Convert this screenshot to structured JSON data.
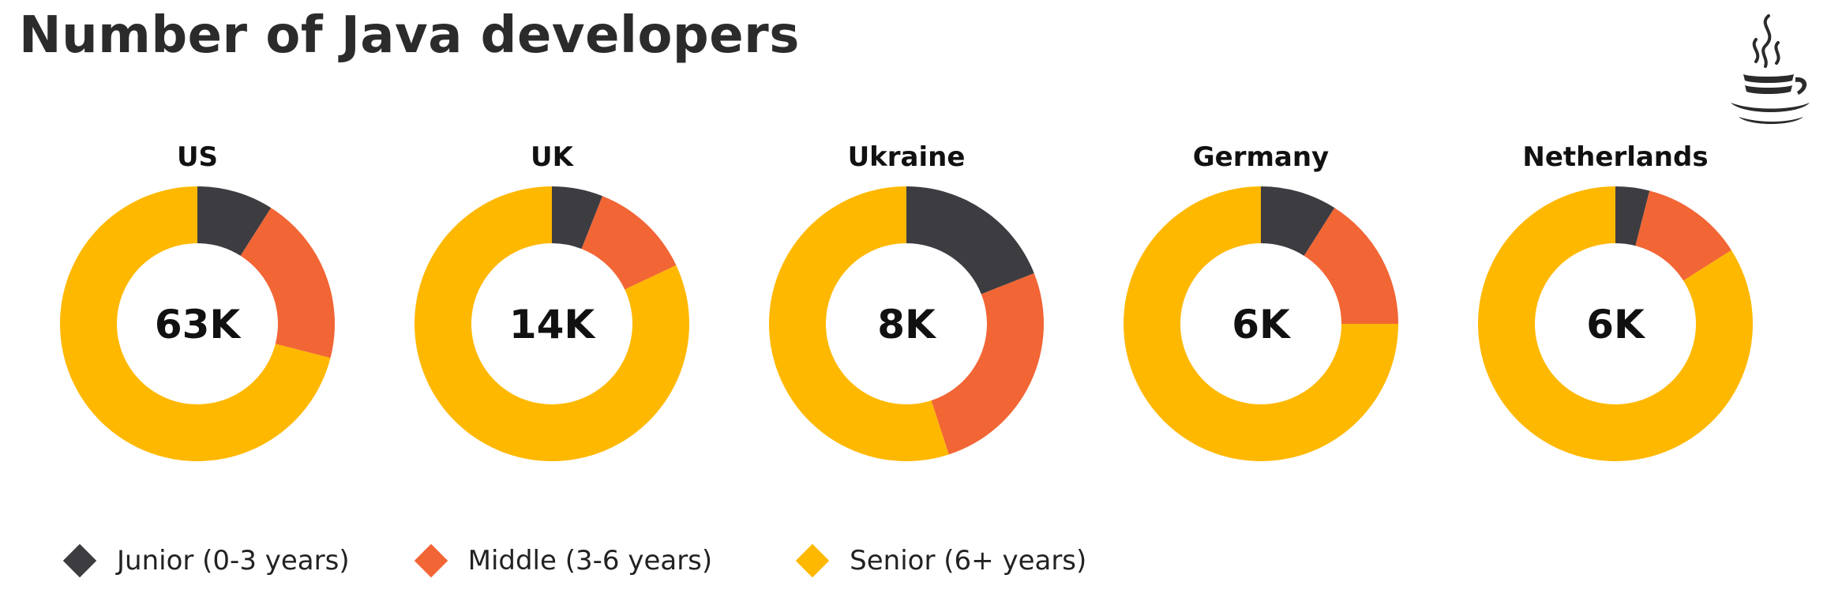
{
  "title": "Number of Java developers",
  "logo_icon": "java-cup-icon",
  "colors": {
    "junior": "#3d3c41",
    "middle": "#f26535",
    "senior": "#ffb800"
  },
  "chart_data": {
    "type": "pie",
    "variant": "donut",
    "series_names": [
      "Junior (0-3 years)",
      "Middle (3-6 years)",
      "Senior (6+ years)"
    ],
    "legend_position": "bottom-left",
    "charts": [
      {
        "category": "US",
        "total_label": "63K",
        "values": {
          "junior": 9,
          "middle": 20,
          "senior": 71
        }
      },
      {
        "category": "UK",
        "total_label": "14K",
        "values": {
          "junior": 6,
          "middle": 12,
          "senior": 82
        }
      },
      {
        "category": "Ukraine",
        "total_label": "8K",
        "values": {
          "junior": 19,
          "middle": 26,
          "senior": 55
        }
      },
      {
        "category": "Germany",
        "total_label": "6K",
        "values": {
          "junior": 9,
          "middle": 16,
          "senior": 75
        }
      },
      {
        "category": "Netherlands",
        "total_label": "6K",
        "values": {
          "junior": 4,
          "middle": 12,
          "senior": 84
        }
      }
    ]
  },
  "legend": [
    {
      "key": "junior",
      "label": "Junior (0-3 years)"
    },
    {
      "key": "middle",
      "label": "Middle (3-6 years)"
    },
    {
      "key": "senior",
      "label": "Senior (6+ years)"
    }
  ]
}
